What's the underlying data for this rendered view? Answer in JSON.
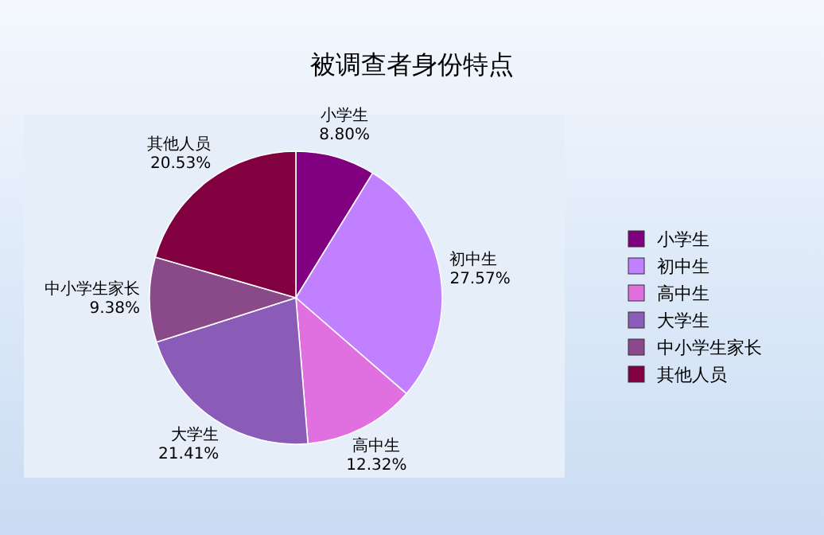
{
  "chart_data": {
    "type": "pie",
    "title": "被调查者身份特点",
    "legend": "right",
    "value_labels": [
      "8.80%",
      "27.57%",
      "12.32%",
      "21.41%",
      "9.38%",
      "20.53%"
    ],
    "categories": [
      "小学生",
      "初中生",
      "高中生",
      "大学生",
      "中小学生家长",
      "其他人员"
    ],
    "values": [
      8.8,
      27.57,
      12.32,
      21.41,
      9.38,
      20.53
    ],
    "colors": [
      "#800080",
      "#c080ff",
      "#e070e0",
      "#8a5cb8",
      "#8a4a8a",
      "#800040"
    ]
  }
}
